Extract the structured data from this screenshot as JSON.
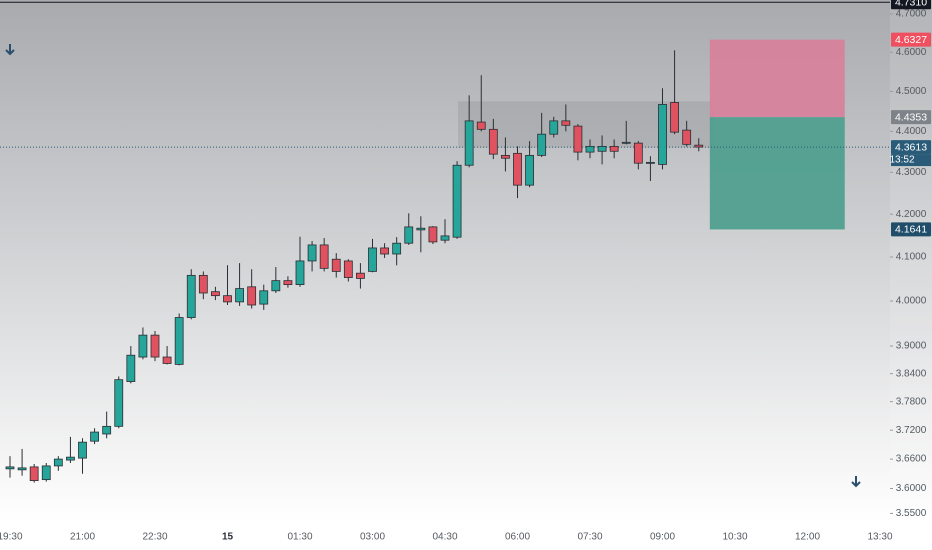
{
  "chart_data": {
    "type": "candlestick",
    "categories": [
      "19:30",
      null,
      null,
      null,
      null,
      null,
      "21:00",
      null,
      null,
      null,
      null,
      null,
      "22:30",
      null,
      null,
      null,
      null,
      null,
      "15",
      null,
      null,
      null,
      null,
      null,
      "01:30",
      null,
      null,
      null,
      null,
      null,
      "03:00",
      null,
      null,
      null,
      null,
      null,
      "04:30",
      null,
      null,
      null,
      null,
      null,
      "06:00",
      null,
      null,
      null,
      null,
      null,
      "07:30",
      null,
      null,
      null,
      null,
      null,
      "09:00",
      null,
      null,
      null,
      null,
      null,
      "10:30",
      null,
      null,
      null,
      null,
      null,
      "12:00",
      null,
      null,
      null,
      null,
      null,
      "13:30"
    ],
    "open": [
      3.64,
      3.638,
      3.644,
      3.618,
      3.646,
      3.658,
      3.662,
      3.697,
      3.712,
      3.728,
      3.823,
      3.876,
      3.924,
      3.876,
      3.86,
      3.963,
      4.058,
      4.021,
      4.012,
      3.998,
      4.032,
      3.993,
      4.023,
      4.046,
      4.037,
      4.091,
      4.128,
      4.095,
      4.091,
      4.063,
      4.067,
      4.121,
      4.107,
      4.132,
      4.163,
      4.17,
      4.139,
      4.146,
      4.317,
      4.423,
      4.405,
      4.341,
      4.346,
      4.269,
      4.341,
      4.393,
      4.426,
      4.413,
      4.349,
      4.351,
      4.363,
      4.371,
      4.371,
      4.322,
      4.319,
      4.472,
      4.403,
      4.366,
      null,
      null,
      null,
      null,
      null,
      null,
      null,
      null,
      null,
      null,
      null,
      null,
      null,
      null,
      null
    ],
    "high": [
      3.666,
      3.681,
      3.65,
      3.652,
      3.666,
      3.706,
      3.703,
      3.724,
      3.759,
      3.834,
      3.9,
      3.941,
      3.933,
      3.9,
      3.972,
      4.072,
      4.067,
      4.032,
      4.081,
      4.086,
      4.072,
      4.037,
      4.077,
      4.056,
      4.147,
      4.137,
      4.144,
      4.109,
      4.095,
      4.086,
      4.142,
      4.132,
      4.146,
      4.202,
      4.195,
      4.172,
      4.188,
      4.327,
      4.49,
      4.541,
      4.431,
      4.385,
      4.363,
      4.376,
      4.446,
      4.436,
      4.467,
      4.418,
      4.38,
      4.39,
      4.38,
      4.426,
      4.376,
      4.339,
      4.508,
      4.605,
      4.426,
      4.383,
      null,
      null,
      null,
      null,
      null,
      null,
      null,
      null,
      null,
      null,
      null,
      null,
      null,
      null,
      null
    ],
    "low": [
      3.622,
      3.626,
      3.612,
      3.614,
      3.636,
      3.652,
      3.63,
      3.691,
      3.703,
      3.724,
      3.819,
      3.871,
      3.867,
      3.86,
      3.858,
      3.959,
      4.004,
      4.002,
      3.991,
      3.989,
      3.983,
      3.98,
      4.018,
      4.03,
      4.032,
      4.067,
      4.067,
      4.053,
      4.044,
      4.028,
      4.065,
      4.098,
      4.081,
      4.128,
      4.111,
      4.13,
      4.132,
      4.142,
      4.312,
      4.4,
      4.332,
      4.302,
      4.238,
      4.264,
      4.337,
      4.385,
      4.4,
      4.329,
      4.334,
      4.319,
      4.334,
      4.368,
      4.307,
      4.279,
      4.307,
      4.393,
      4.363,
      4.351,
      null,
      null,
      null,
      null,
      null,
      null,
      null,
      null,
      null,
      null,
      null,
      null,
      null,
      null,
      null
    ],
    "close": [
      3.644,
      3.642,
      3.616,
      3.646,
      3.66,
      3.664,
      3.695,
      3.716,
      3.728,
      3.827,
      3.88,
      3.924,
      3.876,
      3.862,
      3.963,
      4.058,
      4.018,
      4.012,
      3.998,
      4.028,
      3.991,
      4.023,
      4.046,
      4.037,
      4.091,
      4.128,
      4.074,
      4.067,
      4.053,
      4.051,
      4.121,
      4.107,
      4.132,
      4.17,
      4.167,
      4.135,
      4.149,
      4.317,
      4.426,
      4.405,
      4.344,
      4.334,
      4.269,
      4.341,
      4.393,
      4.426,
      4.415,
      4.349,
      4.363,
      4.363,
      4.351,
      4.373,
      4.322,
      4.324,
      4.467,
      4.398,
      4.368,
      4.3613,
      null,
      null,
      null,
      null,
      null,
      null,
      null,
      null,
      null,
      null,
      null,
      null,
      null,
      null,
      null
    ],
    "up_color": "#26a69a",
    "down_color": "#e0525f",
    "log_scale": true,
    "ylim": [
      3.523,
      4.737
    ],
    "yticks": [
      {
        "value": 4.7,
        "label": "4.7000"
      },
      {
        "value": 4.6,
        "label": "4.6000"
      },
      {
        "value": 4.5,
        "label": "4.5000"
      },
      {
        "value": 4.4,
        "label": "4.4000"
      },
      {
        "value": 4.3,
        "label": "4.3000"
      },
      {
        "value": 4.2,
        "label": "4.2000"
      },
      {
        "value": 4.1,
        "label": "4.1000"
      },
      {
        "value": 4.0,
        "label": "4.0000"
      },
      {
        "value": 3.9,
        "label": "3.9000"
      },
      {
        "value": 3.84,
        "label": "3.8400"
      },
      {
        "value": 3.78,
        "label": "3.7800"
      },
      {
        "value": 3.72,
        "label": "3.7200"
      },
      {
        "value": 3.66,
        "label": "3.6600"
      },
      {
        "value": 3.6,
        "label": "3.6000"
      },
      {
        "value": 3.55,
        "label": "3.5500"
      }
    ],
    "grid": false,
    "zone": {
      "high": 4.475,
      "low": 4.36,
      "color": "#8e9196"
    },
    "markers": [
      {
        "value": 4.731,
        "label": "4.7310",
        "color": "#131722"
      },
      {
        "value": 4.6327,
        "label": "4.6327",
        "color": "#ef4f5f"
      },
      {
        "value": 4.4353,
        "label": "4.4353",
        "color": "#7d8388"
      },
      {
        "value": 4.3613,
        "label": "4.3613",
        "color": "#2a5b78",
        "countdown": "13:52"
      },
      {
        "value": 4.1641,
        "label": "4.1641",
        "color": "#1f4d6a"
      }
    ],
    "risk_color": "#d8809a",
    "reward_color": "#4a9d8c"
  }
}
